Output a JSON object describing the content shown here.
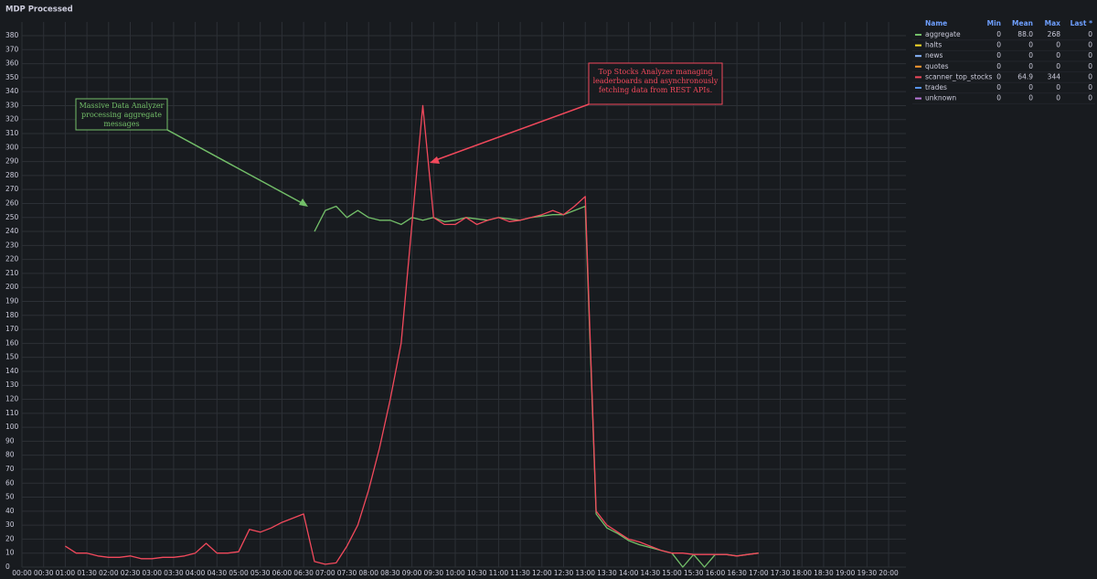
{
  "chart_data": {
    "type": "line",
    "title": "MDP Processed",
    "x": [
      1,
      1.25,
      1.5,
      1.75,
      2,
      2.25,
      2.5,
      2.75,
      3,
      3.25,
      3.5,
      3.75,
      4,
      4.25,
      4.5,
      4.75,
      5,
      5.25,
      5.5,
      5.75,
      6,
      6.25,
      6.5,
      6.75,
      7,
      7.25,
      7.5,
      7.75,
      8,
      8.25,
      8.5,
      8.75,
      9,
      9.25,
      9.5,
      9.75,
      10,
      10.25,
      10.5,
      10.75,
      11,
      11.25,
      11.5,
      11.75,
      12,
      12.25,
      12.5,
      12.75,
      13,
      13.25,
      13.5,
      13.75,
      14,
      14.25,
      14.5,
      14.75,
      15,
      15.25,
      15.5,
      15.75,
      16,
      16.25,
      16.5,
      16.75,
      17
    ],
    "series": [
      {
        "name": "aggregate",
        "color": "#73bf69",
        "values": [
          null,
          null,
          null,
          null,
          null,
          null,
          null,
          null,
          null,
          null,
          null,
          null,
          null,
          null,
          null,
          null,
          null,
          null,
          null,
          null,
          null,
          null,
          null,
          240,
          255,
          258,
          250,
          255,
          250,
          248,
          248,
          245,
          250,
          248,
          250,
          247,
          248,
          250,
          249,
          248,
          250,
          249,
          248,
          250,
          251,
          252,
          252,
          255,
          258,
          38,
          28,
          24,
          19,
          16,
          14,
          12,
          10,
          0,
          9,
          0,
          9,
          9,
          8,
          9,
          10
        ],
        "stats": {
          "min": 0,
          "mean": 88,
          "max": 268,
          "last": 0
        },
        "stats_labels": {
          "mean": "88.0"
        }
      },
      {
        "name": "halts",
        "color": "#fade2a",
        "stats": {
          "min": 0,
          "mean": 0,
          "max": 0,
          "last": 0
        }
      },
      {
        "name": "news",
        "color": "#8ab8ff",
        "stats": {
          "min": 0,
          "mean": 0,
          "max": 0,
          "last": 0
        }
      },
      {
        "name": "quotes",
        "color": "#ff9830",
        "stats": {
          "min": 0,
          "mean": 0,
          "max": 0,
          "last": 0
        }
      },
      {
        "name": "scanner_top_stocks",
        "color": "#f2495c",
        "values": [
          15,
          10,
          10,
          8,
          7,
          7,
          8,
          6,
          6,
          7,
          7,
          8,
          10,
          17,
          10,
          10,
          11,
          27,
          25,
          28,
          32,
          35,
          38,
          4,
          2,
          3,
          15,
          30,
          55,
          85,
          120,
          160,
          245,
          330,
          250,
          245,
          245,
          250,
          245,
          248,
          250,
          247,
          248,
          250,
          252,
          255,
          252,
          258,
          265,
          40,
          30,
          25,
          20,
          18,
          15,
          12,
          10,
          10,
          9,
          9,
          9,
          9,
          8,
          9,
          10
        ],
        "stats": {
          "min": 0,
          "mean": 64.9,
          "max": 344,
          "last": 0
        }
      },
      {
        "name": "trades",
        "color": "#5794f2",
        "stats": {
          "min": 0,
          "mean": 0,
          "max": 0,
          "last": 0
        }
      },
      {
        "name": "unknown",
        "color": "#b877d9",
        "stats": {
          "min": 0,
          "mean": 0,
          "max": 0,
          "last": 0
        }
      }
    ],
    "legend_headers": [
      "Name",
      "Min",
      "Mean",
      "Max",
      "Last *"
    ],
    "annotations": [
      {
        "text": [
          "Massive Data Analyzer",
          "processing aggregate",
          "messages"
        ],
        "color": "#73bf69"
      },
      {
        "text": [
          "Top Stocks Analyzer managing",
          "leaderboards and asynchronously",
          "fetching data from REST APIs."
        ],
        "color": "#f2495c"
      }
    ],
    "xlim": [
      0,
      20.4
    ],
    "ylim": [
      0,
      380
    ],
    "xticks": [
      {
        "value": 0,
        "label": "00:00"
      },
      {
        "value": 0.5,
        "label": "00:30"
      },
      {
        "value": 1,
        "label": "01:00"
      },
      {
        "value": 1.5,
        "label": "01:30"
      },
      {
        "value": 2,
        "label": "02:00"
      },
      {
        "value": 2.5,
        "label": "02:30"
      },
      {
        "value": 3,
        "label": "03:00"
      },
      {
        "value": 3.5,
        "label": "03:30"
      },
      {
        "value": 4,
        "label": "04:00"
      },
      {
        "value": 4.5,
        "label": "04:30"
      },
      {
        "value": 5,
        "label": "05:00"
      },
      {
        "value": 5.5,
        "label": "05:30"
      },
      {
        "value": 6,
        "label": "06:00"
      },
      {
        "value": 6.5,
        "label": "06:30"
      },
      {
        "value": 7,
        "label": "07:00"
      },
      {
        "value": 7.5,
        "label": "07:30"
      },
      {
        "value": 8,
        "label": "08:00"
      },
      {
        "value": 8.5,
        "label": "08:30"
      },
      {
        "value": 9,
        "label": "09:00"
      },
      {
        "value": 9.5,
        "label": "09:30"
      },
      {
        "value": 10,
        "label": "10:00"
      },
      {
        "value": 10.5,
        "label": "10:30"
      },
      {
        "value": 11,
        "label": "11:00"
      },
      {
        "value": 11.5,
        "label": "11:30"
      },
      {
        "value": 12,
        "label": "12:00"
      },
      {
        "value": 12.5,
        "label": "12:30"
      },
      {
        "value": 13,
        "label": "13:00"
      },
      {
        "value": 13.5,
        "label": "13:30"
      },
      {
        "value": 14,
        "label": "14:00"
      },
      {
        "value": 14.5,
        "label": "14:30"
      },
      {
        "value": 15,
        "label": "15:00"
      },
      {
        "value": 15.5,
        "label": "15:30"
      },
      {
        "value": 16,
        "label": "16:00"
      },
      {
        "value": 16.5,
        "label": "16:30"
      },
      {
        "value": 17,
        "label": "17:00"
      },
      {
        "value": 17.5,
        "label": "17:30"
      },
      {
        "value": 18,
        "label": "18:00"
      },
      {
        "value": 18.5,
        "label": "18:30"
      },
      {
        "value": 19,
        "label": "19:00"
      },
      {
        "value": 19.5,
        "label": "19:30"
      },
      {
        "value": 20,
        "label": "20:00"
      }
    ],
    "yticks": [
      0,
      10,
      20,
      30,
      40,
      50,
      60,
      70,
      80,
      90,
      100,
      110,
      120,
      130,
      140,
      150,
      160,
      170,
      180,
      190,
      200,
      210,
      220,
      230,
      240,
      250,
      260,
      270,
      280,
      290,
      300,
      310,
      320,
      330,
      340,
      350,
      360,
      370,
      380
    ],
    "grid": true
  }
}
